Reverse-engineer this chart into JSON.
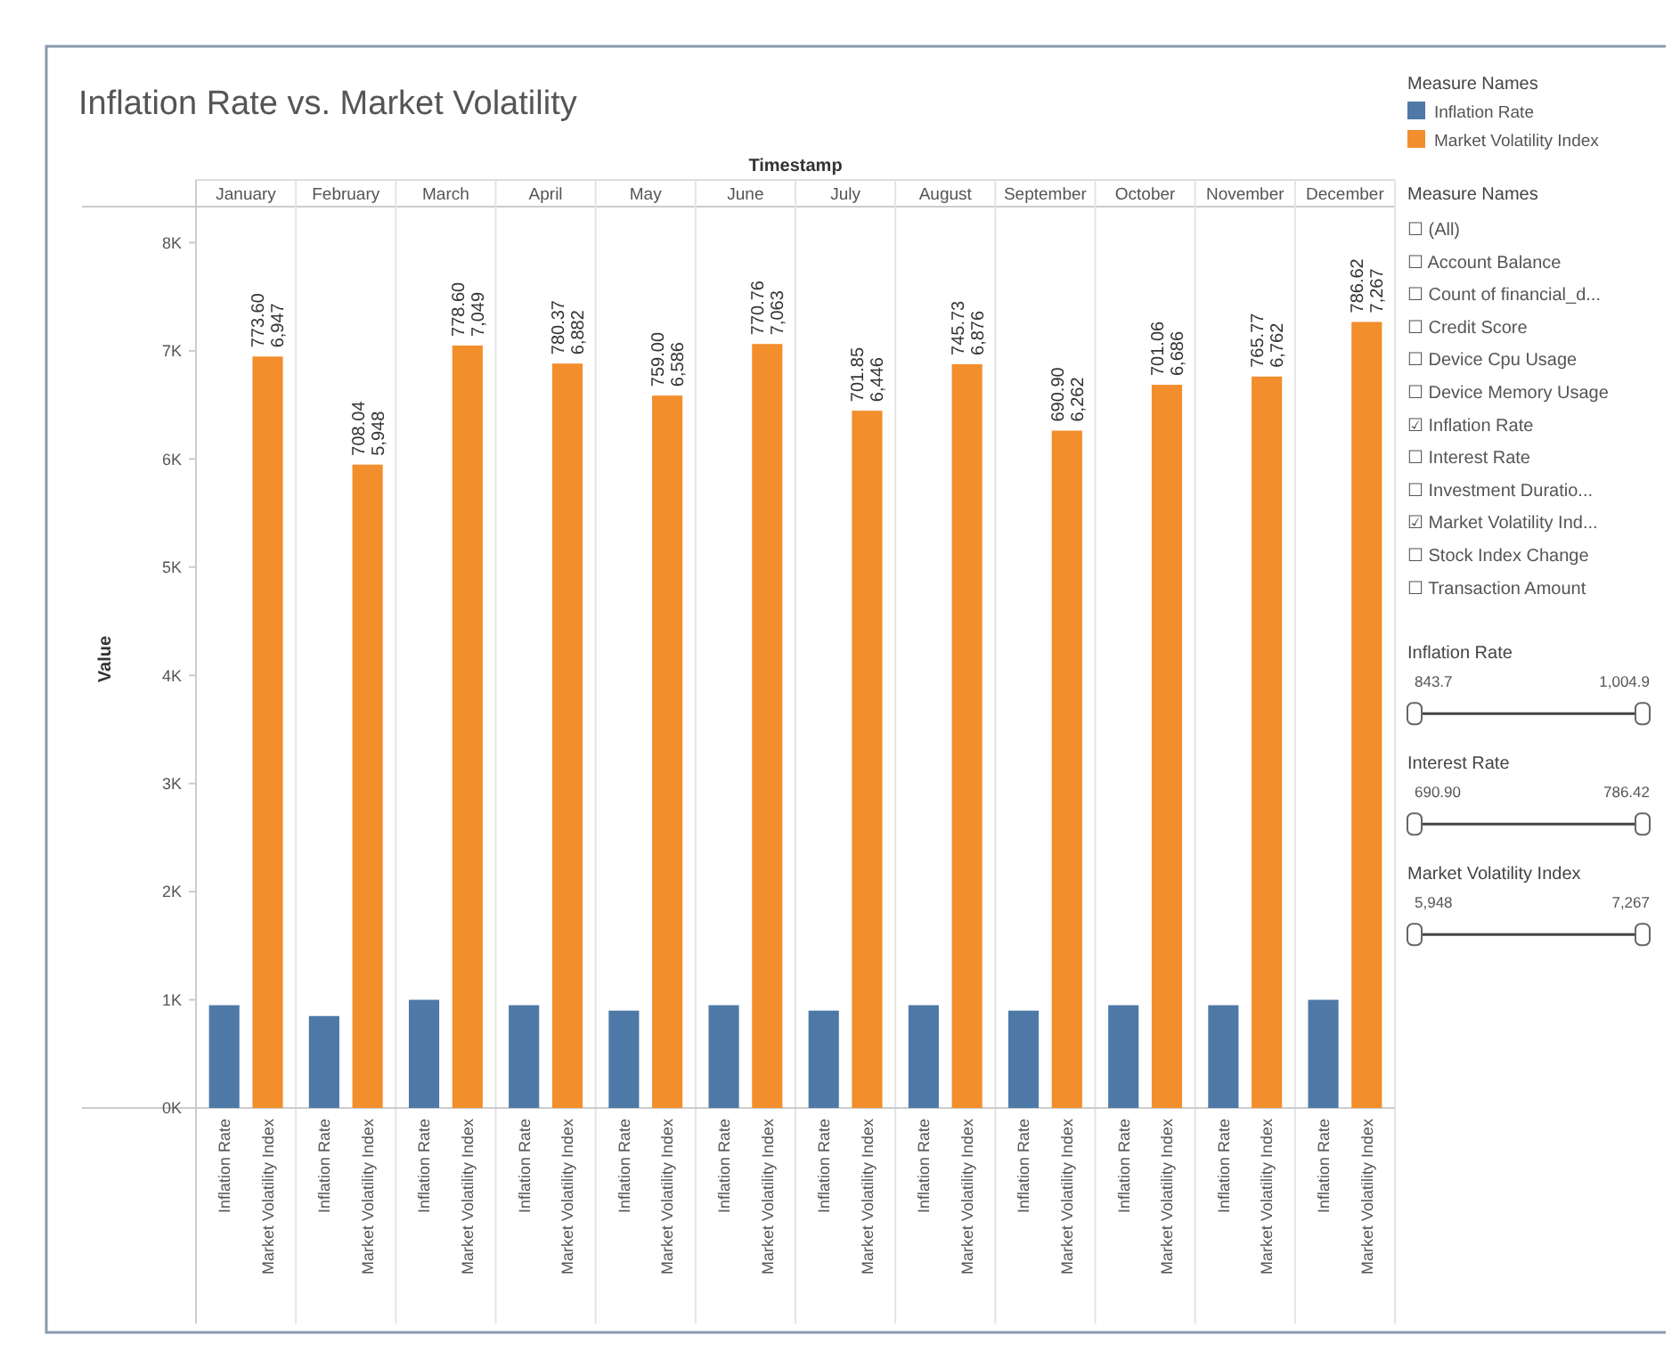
{
  "chart_data": [
    {
      "type": "bar",
      "title": "Inflation Rate vs. Market Volatility",
      "xlabel": "Timestamp",
      "ylabel": "Value",
      "legend_title": "Measure Names",
      "legend": "top right",
      "categories": [
        "January",
        "February",
        "March",
        "April",
        "May",
        "June",
        "July",
        "August",
        "September",
        "October",
        "November",
        "December"
      ],
      "series": [
        {
          "name": "Inflation Rate",
          "color": "#4e79a7",
          "values": [
            950,
            850,
            1000,
            950,
            900,
            950,
            900,
            950,
            900,
            950,
            950,
            1000
          ]
        },
        {
          "name": "Market Volatility Index",
          "color": "#f28e2b",
          "values": [
            6947,
            5948,
            7049,
            6882,
            6586,
            7063,
            6446,
            6876,
            6262,
            6686,
            6762,
            7267
          ],
          "value_labels": [
            "773.60\n6,947",
            "708.04\n5,948",
            "778.60\n7,049",
            "780.37\n6,882",
            "759.00\n6,586",
            "770.76\n7,063",
            "701.85\n6,446",
            "745.73\n6,876",
            "690.90\n6,262",
            "701.06\n6,686",
            "765.77\n6,762",
            "786.62\n7,267"
          ]
        }
      ],
      "ylim": [
        0,
        8300
      ],
      "yticks": [
        {
          "value": 0,
          "label": "0K"
        },
        {
          "value": 1000,
          "label": "1K"
        },
        {
          "value": 2000,
          "label": "2K"
        },
        {
          "value": 3000,
          "label": "3K"
        },
        {
          "value": 4000,
          "label": "4K"
        },
        {
          "value": 5000,
          "label": "5K"
        },
        {
          "value": 6000,
          "label": "6K"
        },
        {
          "value": 7000,
          "label": "7K"
        },
        {
          "value": 8000,
          "label": "8K"
        }
      ]
    },
    {
      "type": "other",
      "title": "Measure Names",
      "categories": [
        "☐ (All)",
        "☐ Account Balance",
        "☐ Count of financial_d...",
        "☐ Credit Score",
        "☐ Device Cpu Usage",
        "☐ Device Memory Usage",
        "☑ Inflation Rate",
        "☐ Interest Rate",
        "☐ Investment Duratio...",
        "☑ Market Volatility Ind...",
        "☐ Stock Index Change",
        "☐ Transaction Amount"
      ],
      "annotations": [
        "Inflation Rate",
        "843.7",
        "1,004.9",
        "Interest Rate",
        "690.90",
        "786.42",
        "Market Volatility Index",
        "5,948",
        "7,267"
      ]
    }
  ]
}
